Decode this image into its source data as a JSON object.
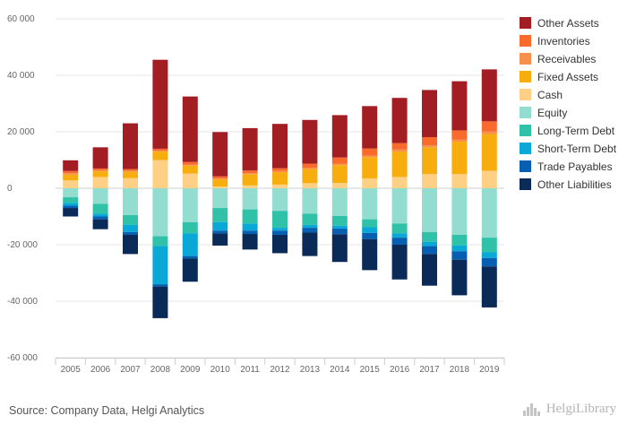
{
  "chart_data": {
    "type": "bar",
    "stacked": true,
    "categories": [
      "2005",
      "2006",
      "2007",
      "2008",
      "2009",
      "2010",
      "2011",
      "2012",
      "2013",
      "2014",
      "2015",
      "2016",
      "2017",
      "2018",
      "2019"
    ],
    "y_ticks": [
      -60000,
      -40000,
      -20000,
      0,
      20000,
      40000,
      60000
    ],
    "y_tick_labels": [
      "-60 000",
      "-40 000",
      "-20 000",
      "0",
      "20 000",
      "40 000",
      "60 000"
    ],
    "ylim": [
      -60000,
      60000
    ],
    "grid": true,
    "legend_position": "right",
    "assets": [
      {
        "name": "Cash",
        "color": "#fdd085",
        "values": [
          2800,
          4000,
          3600,
          10000,
          5200,
          600,
          1000,
          1300,
          1800,
          1900,
          3500,
          4000,
          5000,
          5000,
          6200
        ]
      },
      {
        "name": "Fixed Assets",
        "color": "#f8ad0e",
        "values": [
          2000,
          2000,
          2200,
          3000,
          2800,
          2600,
          4000,
          4400,
          5000,
          6300,
          7500,
          9000,
          9500,
          11500,
          13000
        ]
      },
      {
        "name": "Receivables",
        "color": "#f7904c",
        "values": [
          500,
          500,
          400,
          300,
          300,
          200,
          300,
          400,
          500,
          500,
          600,
          700,
          700,
          800,
          900
        ]
      },
      {
        "name": "Inventories",
        "color": "#f86b2d",
        "values": [
          800,
          500,
          600,
          700,
          1000,
          800,
          1000,
          1000,
          1400,
          2200,
          2500,
          2300,
          2900,
          3200,
          3600
        ]
      },
      {
        "name": "Other Assets",
        "color": "#a31e22",
        "values": [
          3800,
          7500,
          16200,
          31500,
          23200,
          15700,
          15000,
          15700,
          15500,
          15000,
          15000,
          16000,
          16700,
          17400,
          18400
        ]
      }
    ],
    "liabilities": [
      {
        "name": "Equity",
        "color": "#93dcd0",
        "values": [
          -3200,
          -5500,
          -9500,
          -17000,
          -12000,
          -7000,
          -7500,
          -8000,
          -9000,
          -9800,
          -11000,
          -12500,
          -15500,
          -16500,
          -17500
        ]
      },
      {
        "name": "Long-Term Debt",
        "color": "#30c2a9",
        "values": [
          -2000,
          -3500,
          -3500,
          -3500,
          -4000,
          -5000,
          -5000,
          -6000,
          -4000,
          -3500,
          -2800,
          -3500,
          -3500,
          -3800,
          -5200
        ]
      },
      {
        "name": "Short-Term Debt",
        "color": "#0aa8d6",
        "values": [
          -1000,
          -1000,
          -2500,
          -13500,
          -8000,
          -3000,
          -2500,
          -1000,
          -1000,
          -1000,
          -2000,
          -1500,
          -1500,
          -2000,
          -2000
        ]
      },
      {
        "name": "Trade Payables",
        "color": "#075fb1",
        "values": [
          -800,
          -1000,
          -1000,
          -800,
          -900,
          -1000,
          -1200,
          -1500,
          -1700,
          -2000,
          -2200,
          -2500,
          -2800,
          -3000,
          -3000
        ]
      },
      {
        "name": "Other Liabilities",
        "color": "#0a2a57",
        "values": [
          -3000,
          -3500,
          -6800,
          -11200,
          -8200,
          -4300,
          -5500,
          -6500,
          -8300,
          -9800,
          -11000,
          -12300,
          -11200,
          -12600,
          -14500
        ]
      }
    ],
    "legend": [
      "Other Assets",
      "Inventories",
      "Receivables",
      "Fixed Assets",
      "Cash",
      "Equity",
      "Long-Term Debt",
      "Short-Term Debt",
      "Trade Payables",
      "Other Liabilities"
    ]
  },
  "footer": {
    "source": "Source: Company Data, Helgi Analytics",
    "brand": "HelgiLibrary"
  }
}
